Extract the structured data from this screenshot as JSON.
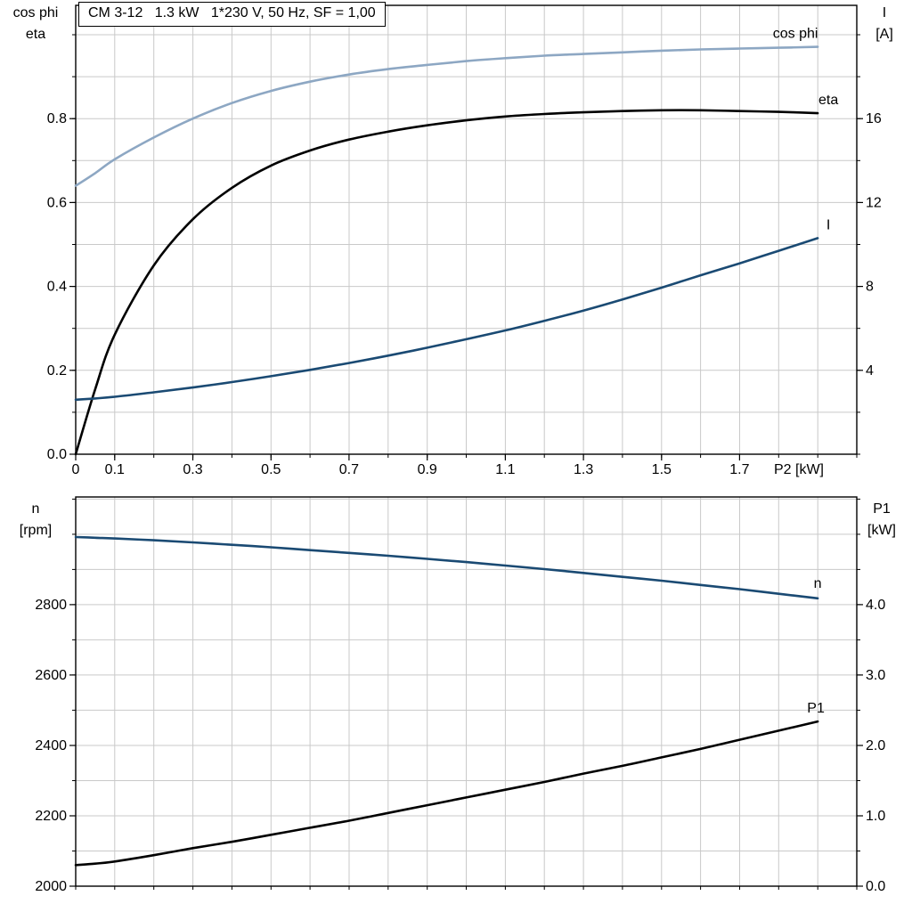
{
  "colors": {
    "light_blue": "#8da7c3",
    "dark_blue": "#1a4a73",
    "black": "#000000",
    "grid": "#c9c9c9",
    "background": "#ffffff"
  },
  "chart_data": [
    {
      "type": "line",
      "title": "CM 3-12   1.3 kW   1*230 V, 50 Hz, SF = 1,00",
      "xlabel": "P2 [kW]",
      "xlim": [
        0,
        2.0
      ],
      "x_minor_step": 0.1,
      "x_tick_values": [
        0,
        0.1,
        0.3,
        0.5,
        0.7,
        0.9,
        1.1,
        1.3,
        1.5,
        1.7
      ],
      "x_tick_labels": [
        "0",
        "0.1",
        "0.3",
        "0.5",
        "0.7",
        "0.9",
        "1.1",
        "1.3",
        "1.5",
        "1.7"
      ],
      "grid": true,
      "legend_position": "curve-end-labels",
      "left_axis": {
        "title_lines": [
          "cos phi",
          "eta"
        ],
        "lim": [
          0,
          1.07
        ],
        "grid_step": 0.1,
        "tick_values": [
          0,
          0.2,
          0.4,
          0.6,
          0.8
        ],
        "tick_labels": [
          "0.0",
          "0.2",
          "0.4",
          "0.6",
          "0.8"
        ]
      },
      "right_axis": {
        "title_lines": [
          "I",
          "[A]"
        ],
        "lim": [
          0,
          21.4
        ],
        "tick_values": [
          4,
          8,
          12,
          16
        ],
        "tick_labels": [
          "4",
          "8",
          "12",
          "16"
        ]
      },
      "x": [
        0,
        0.05,
        0.1,
        0.2,
        0.3,
        0.4,
        0.5,
        0.6,
        0.7,
        0.8,
        0.9,
        1.0,
        1.1,
        1.2,
        1.3,
        1.4,
        1.5,
        1.6,
        1.7,
        1.8,
        1.9
      ],
      "series": [
        {
          "name": "cos phi",
          "axis": "left",
          "color": "#8da7c3",
          "label_dx": -25,
          "label_dy": -10,
          "values": [
            0.64,
            0.67,
            0.703,
            0.755,
            0.8,
            0.837,
            0.866,
            0.888,
            0.905,
            0.918,
            0.928,
            0.937,
            0.944,
            0.95,
            0.954,
            0.958,
            0.962,
            0.965,
            0.967,
            0.969,
            0.971
          ]
        },
        {
          "name": "eta",
          "axis": "left",
          "color": "#000000",
          "label_dx": 12,
          "label_dy": -10,
          "values": [
            0,
            0.155,
            0.285,
            0.45,
            0.56,
            0.635,
            0.688,
            0.724,
            0.75,
            0.769,
            0.784,
            0.796,
            0.805,
            0.811,
            0.815,
            0.818,
            0.82,
            0.82,
            0.818,
            0.816,
            0.813
          ]
        },
        {
          "name": "I",
          "axis": "right",
          "color": "#1a4a73",
          "label_dx": 12,
          "label_dy": -10,
          "values": [
            2.6,
            2.66,
            2.74,
            2.95,
            3.18,
            3.44,
            3.72,
            4.02,
            4.35,
            4.7,
            5.08,
            5.48,
            5.9,
            6.36,
            6.85,
            7.38,
            7.94,
            8.53,
            9.1,
            9.7,
            10.3
          ]
        }
      ]
    },
    {
      "type": "line",
      "xlim": [
        0,
        2.0
      ],
      "x_minor_step": 0.1,
      "grid": true,
      "legend_position": "curve-end-labels",
      "left_axis": {
        "title_lines": [
          "n",
          "[rpm]"
        ],
        "lim": [
          2000,
          3106
        ],
        "grid_step": 100,
        "tick_values": [
          2000,
          2200,
          2400,
          2600,
          2800
        ],
        "tick_labels": [
          "2000",
          "2200",
          "2400",
          "2600",
          "2800"
        ]
      },
      "right_axis": {
        "title_lines": [
          "P1",
          "[kW]"
        ],
        "lim": [
          0,
          5.53
        ],
        "tick_values": [
          0,
          1,
          2,
          3,
          4
        ],
        "tick_labels": [
          "0.0",
          "1.0",
          "2.0",
          "3.0",
          "4.0"
        ]
      },
      "x": [
        0,
        0.05,
        0.1,
        0.2,
        0.3,
        0.4,
        0.5,
        0.6,
        0.7,
        0.8,
        0.9,
        1.0,
        1.1,
        1.2,
        1.3,
        1.4,
        1.5,
        1.6,
        1.7,
        1.8,
        1.9
      ],
      "series": [
        {
          "name": "n",
          "axis": "left",
          "color": "#1a4a73",
          "label_dx": 0,
          "label_dy": -12,
          "values": [
            2992,
            2990,
            2988,
            2983,
            2977,
            2970,
            2963,
            2955,
            2947,
            2939,
            2930,
            2921,
            2911,
            2901,
            2890,
            2879,
            2868,
            2856,
            2844,
            2831,
            2818
          ]
        },
        {
          "name": "P1",
          "axis": "right",
          "color": "#000000",
          "label_dx": -2,
          "label_dy": -10,
          "values": [
            0.3,
            0.32,
            0.35,
            0.44,
            0.54,
            0.63,
            0.73,
            0.83,
            0.93,
            1.04,
            1.15,
            1.26,
            1.37,
            1.48,
            1.6,
            1.71,
            1.83,
            1.95,
            2.08,
            2.21,
            2.34
          ]
        }
      ]
    }
  ]
}
